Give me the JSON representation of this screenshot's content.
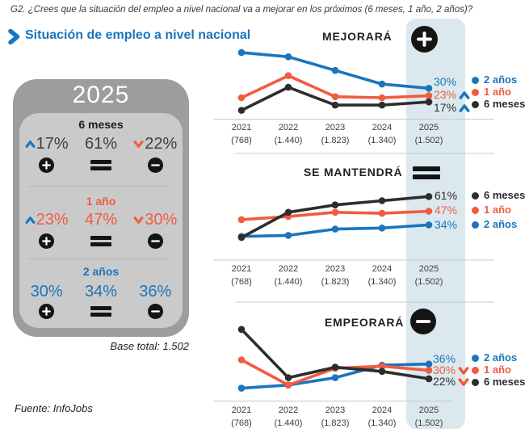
{
  "question": "G2. ¿Crees que la situación del empleo a nivel nacional va a mejorar en los próximos (6 meses, 1 año, 2 años)?",
  "title": "Situación de empleo a nivel nacional",
  "base_total": "Base total: 1.502",
  "source": "Fuente: InfoJobs",
  "colors": {
    "blue": "#1b75bc",
    "orange": "#f15b40",
    "dark": "#2d2d2d",
    "band": "#dbe9ef",
    "box_outer": "#9d9d9d",
    "box_inner": "#cacaca",
    "number_dark": "#3f3f3f"
  },
  "summary_box": {
    "year": "2025",
    "sections": [
      {
        "label": "6 meses",
        "color": "dark",
        "values": [
          {
            "value": "17%",
            "chevron": "up"
          },
          {
            "value": "61%"
          },
          {
            "value": "22%",
            "chevron": "down"
          }
        ]
      },
      {
        "label": "1 año",
        "color": "orange",
        "values": [
          {
            "value": "23%",
            "chevron": "up"
          },
          {
            "value": "47%"
          },
          {
            "value": "30%",
            "chevron": "down"
          }
        ]
      },
      {
        "label": "2 años",
        "color": "blue",
        "values": [
          {
            "value": "30%"
          },
          {
            "value": "34%"
          },
          {
            "value": "36%"
          }
        ]
      }
    ]
  },
  "chart_data": {
    "type": "line",
    "x_years": [
      "2021",
      "2022",
      "2023",
      "2024",
      "2025"
    ],
    "x_bases": [
      "(768)",
      "(1.440)",
      "(1.823)",
      "(1.340)",
      "(1.502)"
    ],
    "ylim": [
      0,
      75
    ],
    "grid": false,
    "highlight_column": "2025",
    "charts": [
      {
        "title": "MEJORARÁ",
        "icon": "plus-circle",
        "series": [
          {
            "name": "2 años",
            "color": "blue",
            "values": [
              64,
              60,
              47,
              34,
              30
            ]
          },
          {
            "name": "1 año",
            "color": "orange",
            "values": [
              21,
              42,
              22,
              21,
              23
            ]
          },
          {
            "name": "6 meses",
            "color": "dark",
            "values": [
              9,
              31,
              14,
              14,
              17
            ]
          }
        ],
        "end_labels": [
          {
            "text": "30%",
            "color": "blue"
          },
          {
            "text": "23%",
            "color": "orange",
            "chevron": "up"
          },
          {
            "text": "17%",
            "color": "dark",
            "chevron": "up"
          }
        ],
        "legend": [
          {
            "label": "2 años",
            "color": "blue"
          },
          {
            "label": "1 año",
            "color": "orange"
          },
          {
            "label": "6 meses",
            "color": "dark"
          }
        ]
      },
      {
        "title": "SE MANTENDRÁ",
        "icon": "equals",
        "series": [
          {
            "name": "6 meses",
            "color": "dark",
            "values": [
              22,
              46,
              53,
              57,
              61
            ]
          },
          {
            "name": "1 año",
            "color": "orange",
            "values": [
              39,
              42,
              46,
              45,
              47
            ]
          },
          {
            "name": "2 años",
            "color": "blue",
            "values": [
              23,
              24,
              30,
              31,
              34
            ]
          }
        ],
        "end_labels": [
          {
            "text": "61%",
            "color": "dark"
          },
          {
            "text": "47%",
            "color": "orange"
          },
          {
            "text": "34%",
            "color": "blue"
          }
        ],
        "legend": [
          {
            "label": "6 meses",
            "color": "dark"
          },
          {
            "label": "1 año",
            "color": "orange"
          },
          {
            "label": "2 años",
            "color": "blue"
          }
        ]
      },
      {
        "title": "EMPEORARÁ",
        "icon": "minus-circle",
        "series": [
          {
            "name": "2 años",
            "color": "blue",
            "values": [
              13,
              16,
              23,
              35,
              36
            ]
          },
          {
            "name": "1 año",
            "color": "orange",
            "values": [
              40,
              16,
              32,
              34,
              30
            ]
          },
          {
            "name": "6 meses",
            "color": "dark",
            "values": [
              69,
              23,
              33,
              29,
              22
            ]
          }
        ],
        "end_labels": [
          {
            "text": "36%",
            "color": "blue"
          },
          {
            "text": "30%",
            "color": "orange",
            "chevron": "down"
          },
          {
            "text": "22%",
            "color": "dark",
            "chevron": "down"
          }
        ],
        "legend": [
          {
            "label": "2 años",
            "color": "blue"
          },
          {
            "label": "1 año",
            "color": "orange"
          },
          {
            "label": "6 meses",
            "color": "dark"
          }
        ]
      }
    ]
  }
}
